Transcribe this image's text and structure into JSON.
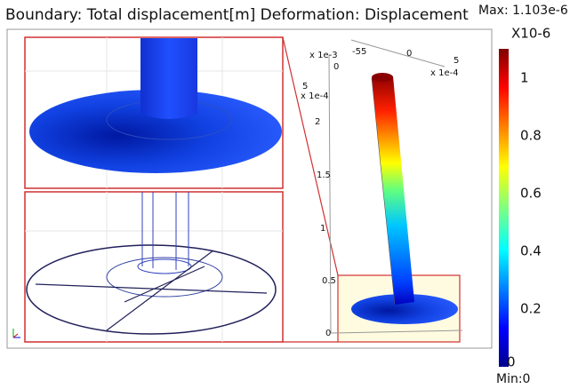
{
  "title": "Boundary: Total displacement[m] Deformation: Displacement",
  "max_label": "Max: 1.103e-6",
  "min_label": "Min:0",
  "colorbar": {
    "unit": "X10-6",
    "ticks": [
      "1",
      "0.8",
      "0.6",
      "0.4",
      "0.2",
      "0"
    ]
  },
  "axes_3d": {
    "top_scale": "x 1e-3",
    "top_zero": "0",
    "x_ticks": [
      "-55",
      "0",
      "5"
    ],
    "x_scale": "x 1e-4",
    "y_tick": "5",
    "y_scale": "x 1e-4",
    "z_ticks": [
      "2",
      "1.5",
      "1",
      "0.5",
      "0"
    ]
  }
}
